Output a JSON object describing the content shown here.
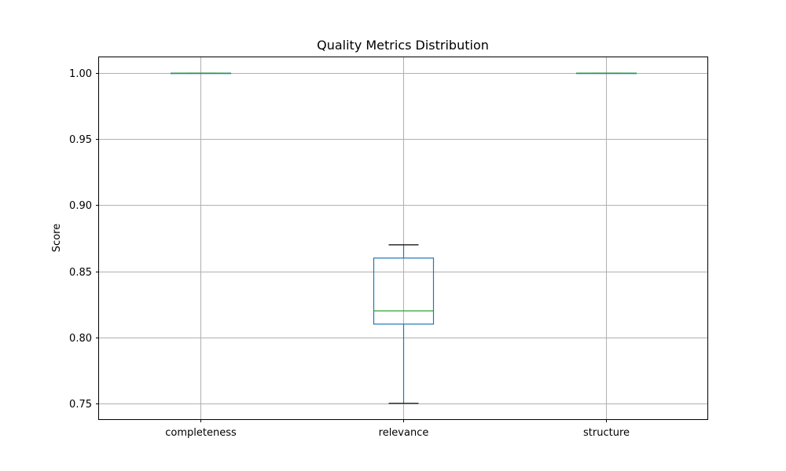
{
  "chart_data": {
    "type": "boxplot",
    "title": "Quality Metrics Distribution",
    "xlabel": "",
    "ylabel": "Score",
    "ylim": [
      0.738,
      1.012
    ],
    "yticks": [
      0.75,
      0.8,
      0.85,
      0.9,
      0.95,
      1.0
    ],
    "ytick_labels": [
      "0.75",
      "0.80",
      "0.85",
      "0.90",
      "0.95",
      "1.00"
    ],
    "grid": true,
    "categories": [
      "completeness",
      "relevance",
      "structure"
    ],
    "boxes": [
      {
        "category": "completeness",
        "min": 1.0,
        "q1": 1.0,
        "median": 1.0,
        "q3": 1.0,
        "max": 1.0
      },
      {
        "category": "relevance",
        "min": 0.75,
        "q1": 0.81,
        "median": 0.82,
        "q3": 0.86,
        "max": 0.87
      },
      {
        "category": "structure",
        "min": 1.0,
        "q1": 1.0,
        "median": 1.0,
        "q3": 1.0,
        "max": 1.0
      }
    ],
    "colors": {
      "box": "#1f77b4",
      "median": "#2ca02c",
      "cap": "#000000",
      "grid": "#b0b0b0"
    }
  }
}
